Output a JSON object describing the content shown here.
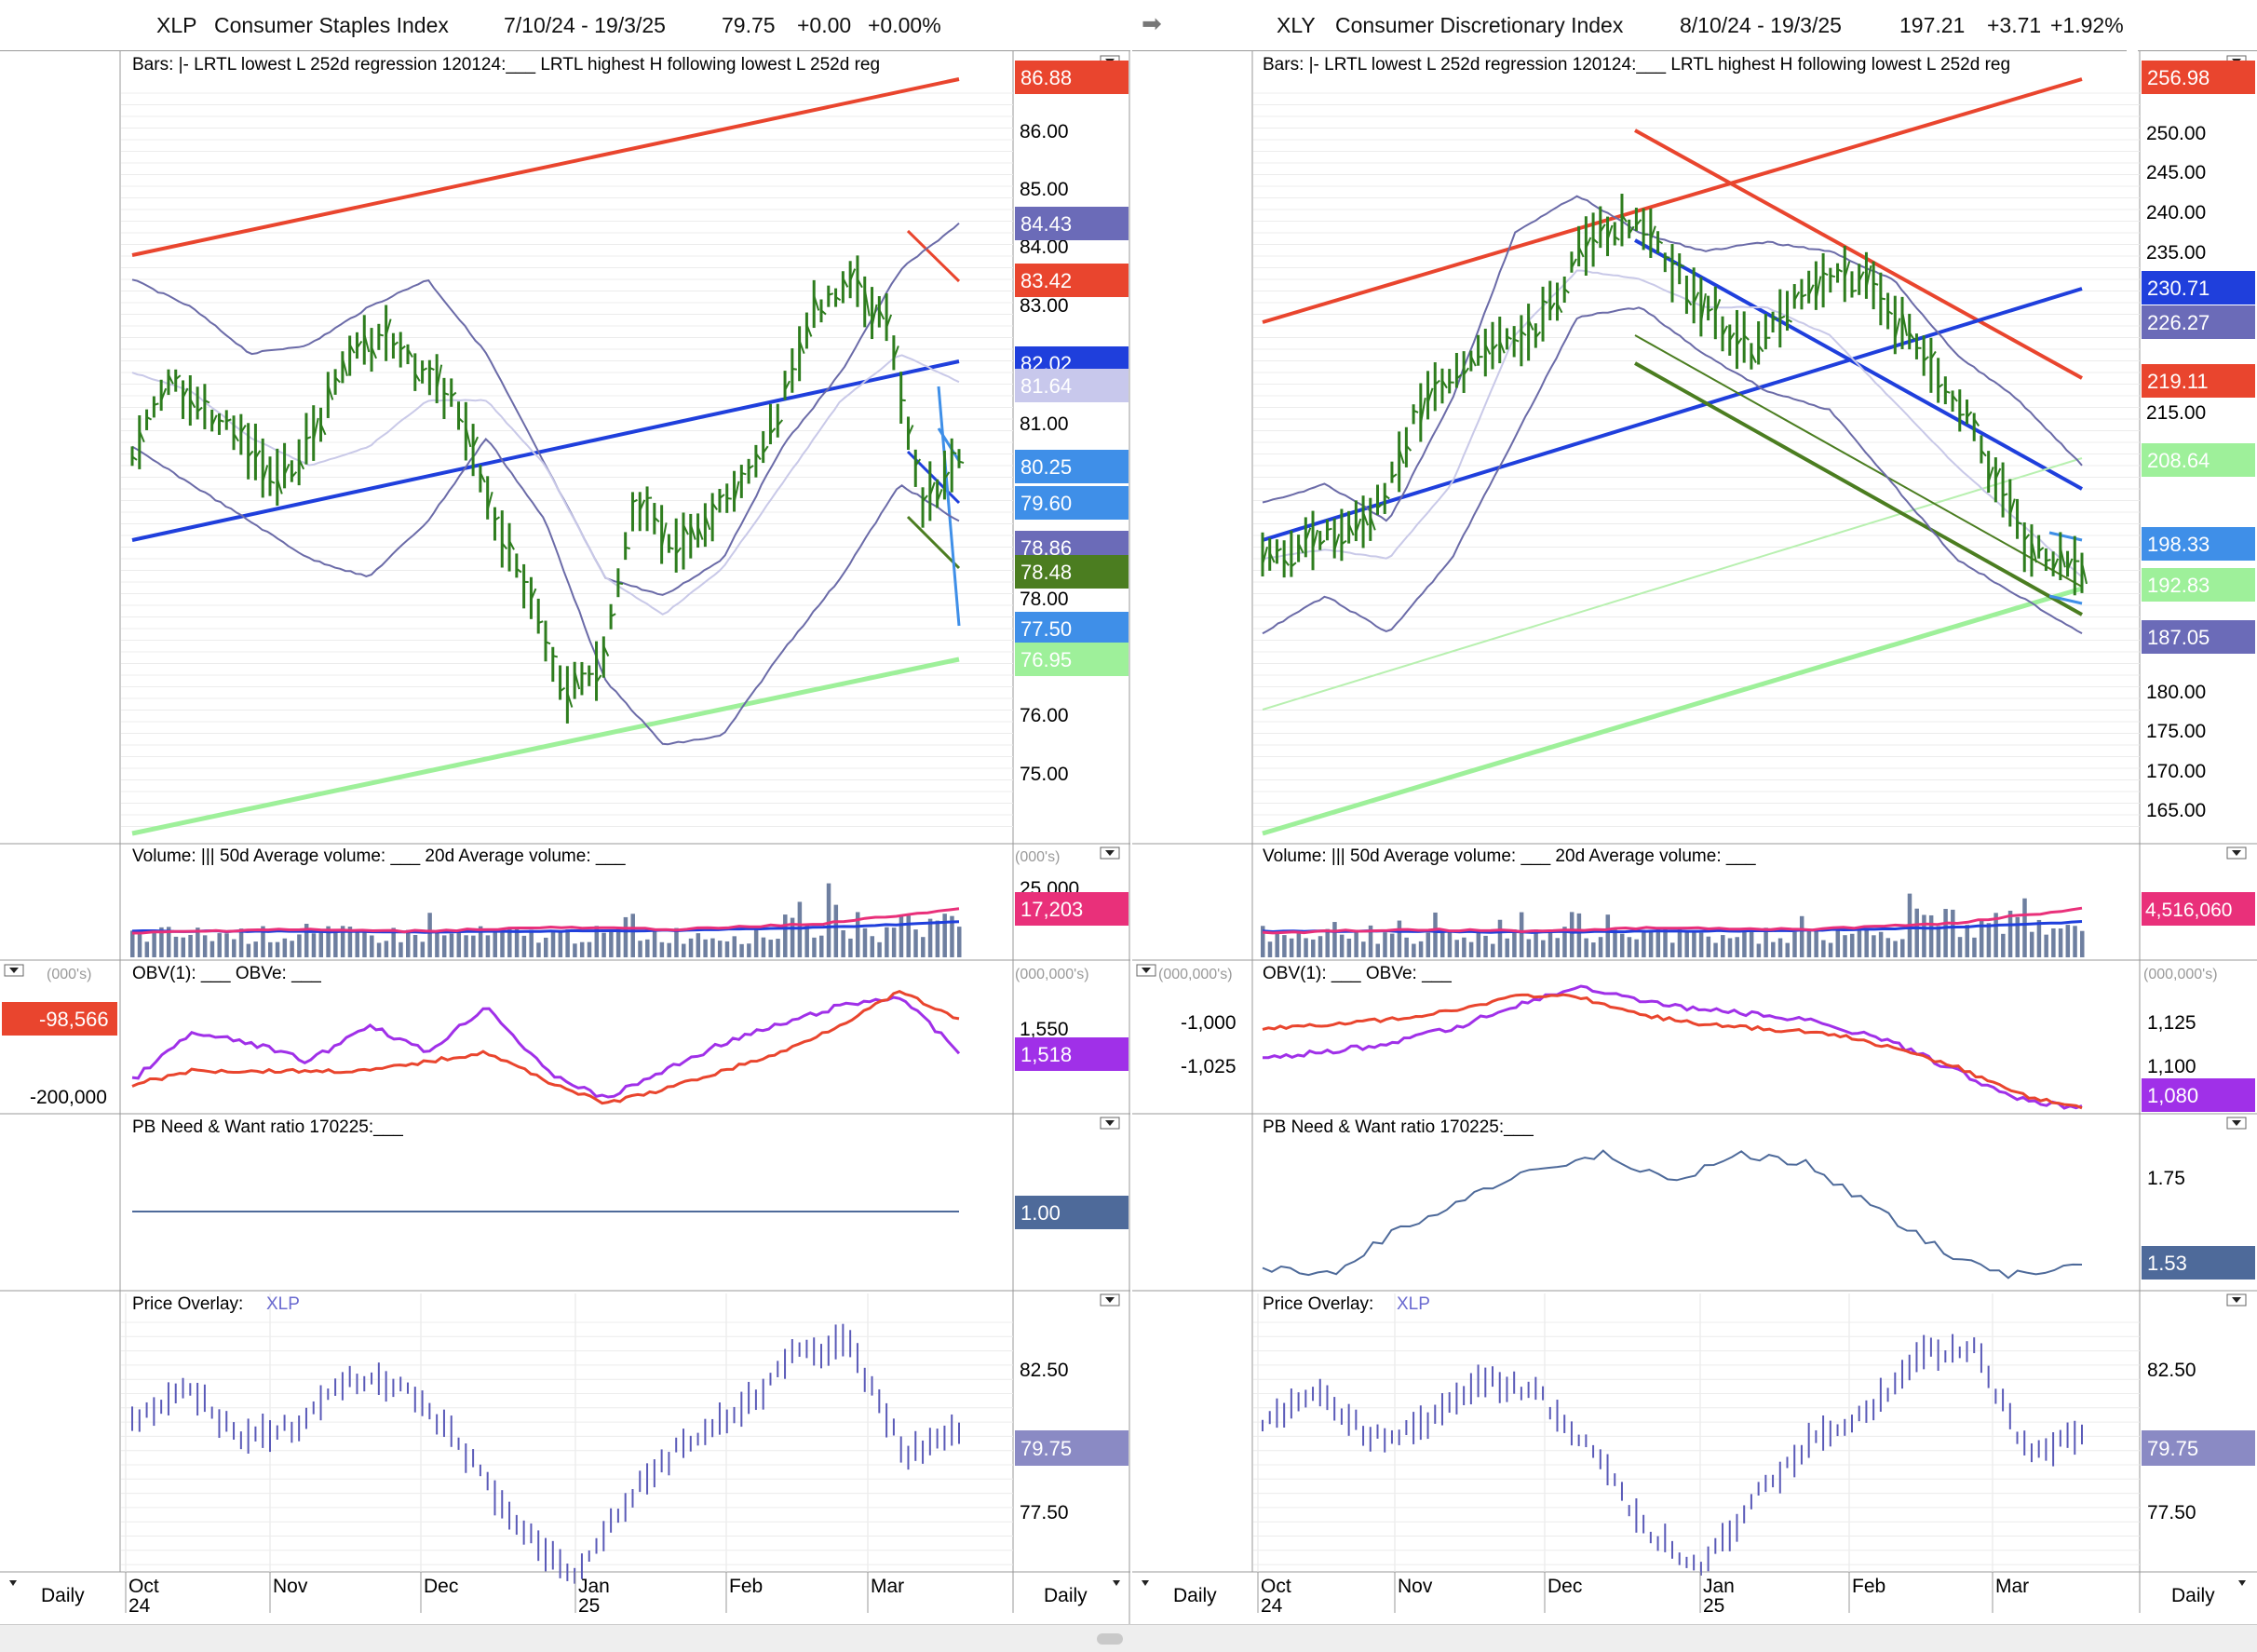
{
  "colors": {
    "up_bar": "#2e7d1e",
    "down_bar": "#2e7d1e",
    "red_channel": "#e9452e",
    "blue_regression": "#1f3fdc",
    "light_green": "#9ef09a",
    "bollinger": "#6b6ba8",
    "obv": "#a030e8",
    "obve": "#e9452e",
    "volume_bar": "#6e7fa0",
    "vol50": "#1f3fdc",
    "vol20": "#e9307a",
    "pb_line": "#4e6a9a",
    "overlay": "#5a5ab8"
  },
  "icons": {
    "arrow": "right-arrow-icon",
    "dropdown": "dropdown-triangle-icon",
    "menu": "panel-menu-icon"
  },
  "left": {
    "ticker": "XLP",
    "name": "Consumer Staples Index",
    "dates": "7/10/24 - 19/3/25",
    "price": "79.75",
    "change": "+0.00",
    "change_pct": "+0.00%",
    "price_legend": "Bars: |- LRTL lowest L 252d regression 120124:___ LRTL highest H following lowest L 252d reg",
    "price_ticks": [
      "86.00",
      "85.00",
      "84.00",
      "83.00",
      "81.00",
      "78.00",
      "76.00",
      "75.00"
    ],
    "price_tags": [
      "86.88",
      "84.43",
      "83.42",
      "82.02",
      "81.64",
      "80.25",
      "79.60",
      "78.86",
      "78.48",
      "77.50",
      "76.95"
    ],
    "volume_legend": "Volume: ||| 50d Average volume: ___ 20d Average volume: ___",
    "volume_unit": "(000's)",
    "volume_tick": "25,000",
    "volume_tag": "17,203",
    "obv_legend": "OBV(1): ___ OBVe: ___",
    "obv_left_unit": "(000's)",
    "obv_right_unit": "(000,000's)",
    "obv_left_tag": "-98,566",
    "obv_left_tick": "-200,000",
    "obv_right_tick": "1,550",
    "obv_right_tag": "1,518",
    "pb_legend": "PB Need & Want ratio 170225:___",
    "pb_tag": "1.00",
    "overlay_legend": "Price Overlay:",
    "overlay_ticker": "XLP",
    "overlay_ticks": [
      "82.50",
      "77.50"
    ],
    "overlay_tag": "79.75",
    "months": [
      "Oct",
      "Nov",
      "Dec",
      "Jan",
      "Feb",
      "Mar"
    ],
    "years": [
      "24",
      "25"
    ],
    "period": "Daily"
  },
  "right": {
    "ticker": "XLY",
    "name": "Consumer Discretionary Index",
    "dates": "8/10/24 - 19/3/25",
    "price": "197.21",
    "change": "+3.71",
    "change_pct": "+1.92%",
    "price_legend": "Bars: |- LRTL lowest L 252d regression 120124:___ LRTL highest H following lowest L 252d reg",
    "price_ticks": [
      "250.00",
      "245.00",
      "240.00",
      "235.00",
      "215.00",
      "180.00",
      "175.00",
      "170.00",
      "165.00"
    ],
    "price_tags": [
      "256.98",
      "230.71",
      "226.27",
      "219.11",
      "208.64",
      "198.33",
      "192.83",
      "187.05"
    ],
    "volume_legend": "Volume: ||| 50d Average volume: ___ 20d Average volume: ___",
    "volume_tag": "4,516,060",
    "obv_legend": "OBV(1): ___ OBVe: ___",
    "obv_left_unit": "(000,000's)",
    "obv_right_unit": "(000,000's)",
    "obv_left_ticks": [
      "-1,000",
      "-1,025"
    ],
    "obv_right_ticks": [
      "1,125",
      "1,100"
    ],
    "obv_right_tag": "1,080",
    "pb_legend": "PB Need & Want ratio 170225:___",
    "pb_tick": "1.75",
    "pb_tag": "1.53",
    "overlay_legend": "Price Overlay:",
    "overlay_ticker": "XLP",
    "overlay_ticks": [
      "82.50",
      "77.50"
    ],
    "overlay_tag": "79.75",
    "months": [
      "Oct",
      "Nov",
      "Dec",
      "Jan",
      "Feb",
      "Mar"
    ],
    "years": [
      "24",
      "25"
    ],
    "period": "Daily"
  }
}
